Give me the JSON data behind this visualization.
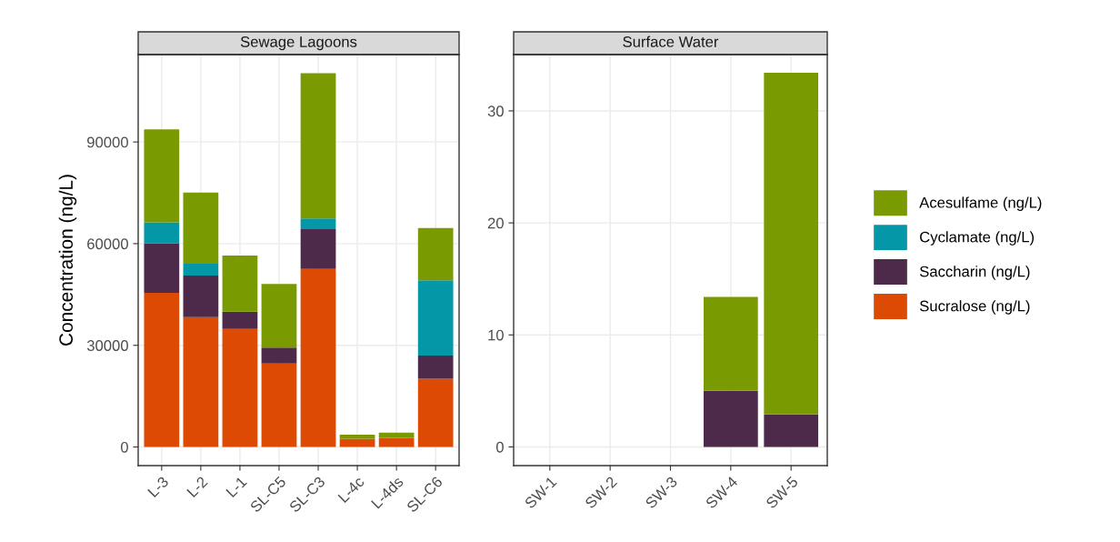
{
  "chart_data": [
    {
      "type": "bar",
      "title": "Sewage Lagoons",
      "ylabel": "Concentration (ng/L)",
      "stacked": true,
      "grid": true,
      "categories": [
        "L-3",
        "L-2",
        "L-1",
        "SL-C5",
        "SL-C3",
        "L-4c",
        "L-4ds",
        "SL-C6"
      ],
      "ylim": [
        -5500,
        115800
      ],
      "yticks": [
        0,
        30000,
        60000,
        90000
      ],
      "series": [
        {
          "color": "#dd4a03",
          "values": [
            45500,
            38300,
            34800,
            24600,
            52500,
            2400,
            2700,
            20100
          ]
        },
        {
          "color": "#4e2a4a",
          "values": [
            14600,
            12300,
            5100,
            4700,
            11800,
            null,
            null,
            6900
          ]
        },
        {
          "color": "#0397a8",
          "values": [
            6200,
            3500,
            null,
            null,
            3100,
            null,
            null,
            22200
          ]
        },
        {
          "color": "#7a9a01",
          "values": [
            27400,
            21000,
            16600,
            18800,
            42900,
            1200,
            1500,
            15400
          ]
        }
      ]
    },
    {
      "type": "bar",
      "title": "Surface Water",
      "stacked": true,
      "grid": true,
      "legend": "right",
      "categories": [
        "SW-1",
        "SW-2",
        "SW-3",
        "SW-4",
        "SW-5"
      ],
      "ylim": [
        -1.67,
        35.03
      ],
      "yticks": [
        0,
        10,
        20,
        30
      ],
      "series": [
        {
          "name": "Sucralose (ng/L)",
          "color": "#dd4a03",
          "values": [
            null,
            null,
            null,
            null,
            null
          ]
        },
        {
          "name": "Saccharin (ng/L)",
          "color": "#4e2a4a",
          "values": [
            null,
            null,
            null,
            5.0,
            2.9
          ]
        },
        {
          "name": "Cyclamate (ng/L)",
          "color": "#0397a8",
          "values": [
            null,
            null,
            null,
            null,
            null
          ]
        },
        {
          "name": "Acesulfame (ng/L)",
          "color": "#7a9a01",
          "values": [
            null,
            null,
            null,
            8.4,
            30.5
          ]
        }
      ]
    }
  ]
}
